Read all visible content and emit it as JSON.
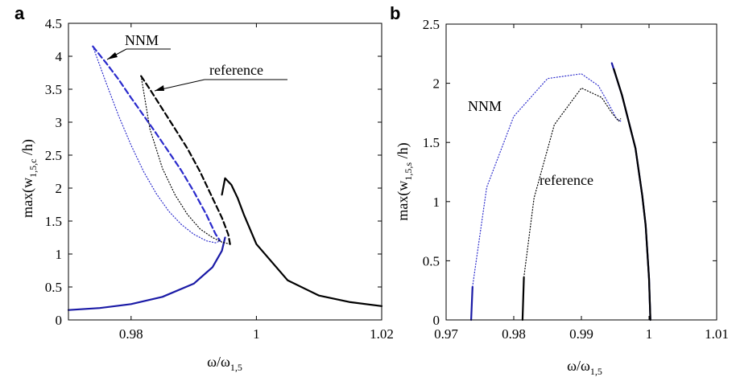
{
  "panels": [
    {
      "letter": "a",
      "xlabel_main": "ω/ω",
      "xlabel_sub": "1,5",
      "ylabel_pre": "max(w",
      "ylabel_sub": "1,5,c",
      "ylabel_post": " /h)",
      "annotations": [
        "NNM",
        "reference"
      ]
    },
    {
      "letter": "b",
      "xlabel_main": "ω/ω",
      "xlabel_sub": "1,5",
      "ylabel_pre": "max(w",
      "ylabel_sub": "1,5,s",
      "ylabel_post": " /h)",
      "annotations": [
        "NNM",
        "reference"
      ]
    }
  ],
  "chart_data": [
    {
      "type": "line",
      "panel": "a",
      "xlim": [
        0.97,
        1.02
      ],
      "ylim": [
        0,
        4.5
      ],
      "xticks": [
        0.98,
        1,
        1.02
      ],
      "xtick_labels": [
        "0.98",
        "1",
        "1.02"
      ],
      "yticks": [
        0,
        0.5,
        1,
        1.5,
        2,
        2.5,
        3,
        3.5,
        4,
        4.5
      ],
      "ytick_labels": [
        "0",
        "0.5",
        "1",
        "1.5",
        "2",
        "2.5",
        "3",
        "3.5",
        "4",
        "4.5"
      ],
      "grid": false,
      "series": [
        {
          "name": "NNM",
          "color": "#1a1aa6",
          "style": "solid",
          "x": [
            0.97,
            0.975,
            0.98,
            0.985,
            0.99,
            0.993,
            0.9945,
            0.995
          ],
          "y": [
            0.15,
            0.18,
            0.24,
            0.35,
            0.55,
            0.8,
            1.05,
            1.25
          ]
        },
        {
          "name": "NNM",
          "color": "#2a2acc",
          "style": "dashed",
          "x": [
            0.9739,
            0.976,
            0.978,
            0.98,
            0.982,
            0.984,
            0.986,
            0.988,
            0.99,
            0.992,
            0.993,
            0.9935,
            0.9942
          ],
          "y": [
            4.15,
            3.9,
            3.65,
            3.37,
            3.1,
            2.83,
            2.55,
            2.27,
            1.95,
            1.6,
            1.4,
            1.3,
            1.2
          ]
        },
        {
          "name": "NNM",
          "color": "#2a2acc",
          "style": "dotted",
          "x": [
            0.9739,
            0.976,
            0.978,
            0.98,
            0.982,
            0.984,
            0.986,
            0.988,
            0.99,
            0.992,
            0.9935,
            0.9942
          ],
          "y": [
            4.15,
            3.6,
            3.1,
            2.65,
            2.25,
            1.92,
            1.65,
            1.45,
            1.3,
            1.2,
            1.17,
            1.2
          ]
        },
        {
          "name": "reference",
          "color": "#000000",
          "style": "solid",
          "x": [
            0.9945,
            0.995,
            0.996,
            0.997,
            0.998,
            1.0,
            1.005,
            1.01,
            1.015,
            1.02
          ],
          "y": [
            1.9,
            2.15,
            2.05,
            1.85,
            1.6,
            1.15,
            0.6,
            0.37,
            0.27,
            0.21
          ]
        },
        {
          "name": "reference",
          "color": "#000000",
          "style": "dashed",
          "x": [
            0.9816,
            0.983,
            0.985,
            0.987,
            0.989,
            0.991,
            0.993,
            0.9945,
            0.9955,
            0.9958
          ],
          "y": [
            3.7,
            3.5,
            3.2,
            2.9,
            2.6,
            2.25,
            1.85,
            1.55,
            1.3,
            1.15
          ]
        },
        {
          "name": "reference",
          "color": "#000000",
          "style": "dotted",
          "x": [
            0.9816,
            0.983,
            0.985,
            0.987,
            0.989,
            0.991,
            0.993,
            0.9945,
            0.9958
          ],
          "y": [
            3.7,
            2.9,
            2.3,
            1.9,
            1.6,
            1.38,
            1.25,
            1.18,
            1.15
          ]
        }
      ]
    },
    {
      "type": "line",
      "panel": "b",
      "xlim": [
        0.97,
        1.01
      ],
      "ylim": [
        0,
        2.5
      ],
      "xticks": [
        0.97,
        0.98,
        0.99,
        1,
        1.01
      ],
      "xtick_labels": [
        "0.97",
        "0.98",
        "0.99",
        "1",
        "1.01"
      ],
      "yticks": [
        0,
        0.5,
        1,
        1.5,
        2,
        2.5
      ],
      "ytick_labels": [
        "0",
        "0.5",
        "1",
        "1.5",
        "2",
        "2.5"
      ],
      "grid": false,
      "series": [
        {
          "name": "NNM",
          "color": "#1a1aa6",
          "style": "solid",
          "x": [
            0.9737,
            0.9739
          ],
          "y": [
            0.0,
            0.28
          ]
        },
        {
          "name": "NNM",
          "color": "#2a2acc",
          "style": "dotted",
          "x": [
            0.9739,
            0.976,
            0.98,
            0.985,
            0.99,
            0.9925,
            0.994,
            0.9952,
            0.9958
          ],
          "y": [
            0.28,
            1.12,
            1.72,
            2.04,
            2.08,
            1.98,
            1.83,
            1.7,
            1.68
          ]
        },
        {
          "name": "NNM",
          "color": "#1a1aa6",
          "style": "solid",
          "x": [
            0.9945,
            0.996,
            0.998,
            0.999,
            0.9995,
            1.0,
            1.0002
          ],
          "y": [
            2.17,
            1.9,
            1.45,
            1.05,
            0.8,
            0.35,
            0.0
          ]
        },
        {
          "name": "reference",
          "color": "#000000",
          "style": "solid",
          "x": [
            0.9813,
            0.9815
          ],
          "y": [
            0.0,
            0.36
          ]
        },
        {
          "name": "reference",
          "color": "#000000",
          "style": "dotted",
          "x": [
            0.9815,
            0.983,
            0.986,
            0.99,
            0.993,
            0.9945,
            0.9955,
            0.9958
          ],
          "y": [
            0.36,
            1.03,
            1.65,
            1.96,
            1.88,
            1.75,
            1.68,
            1.7
          ]
        },
        {
          "name": "reference",
          "color": "#000000",
          "style": "solid",
          "x": [
            0.9948,
            0.996,
            0.998,
            0.999,
            0.9995,
            1.0,
            1.0002
          ],
          "y": [
            2.12,
            1.9,
            1.45,
            1.05,
            0.8,
            0.35,
            0.0
          ]
        }
      ]
    }
  ]
}
